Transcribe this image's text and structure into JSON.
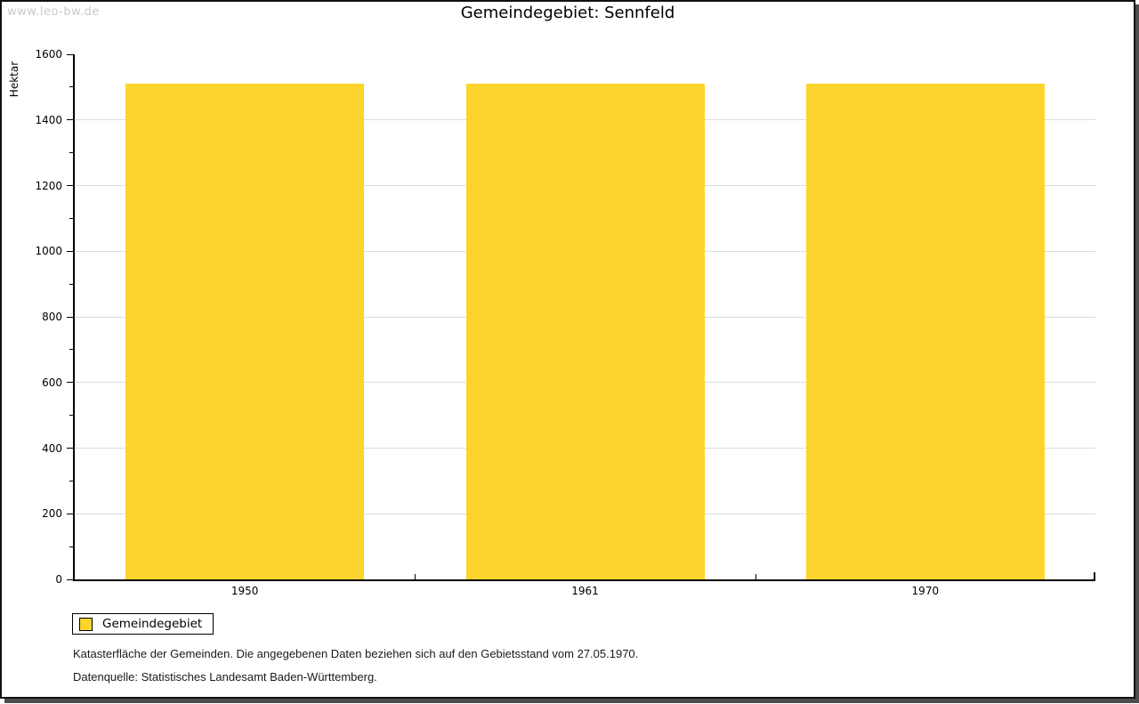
{
  "watermark": {
    "text": "www.leo-bw.de"
  },
  "title": "Gemeindegebiet: Sennfeld",
  "legend": {
    "label": "Gemeindegebiet",
    "swatch_color": "#fcd42d"
  },
  "captions": {
    "line1": "Katasterfläche der Gemeinden. Die angegebenen Daten beziehen sich auf den Gebietsstand vom 27.05.1970.",
    "line2": "Datenquelle: Statistisches Landesamt Baden-Württemberg."
  },
  "chart_data": {
    "type": "bar",
    "title": "Gemeindegebiet: Sennfeld",
    "categories": [
      "1950",
      "1961",
      "1970"
    ],
    "series": [
      {
        "name": "Gemeindegebiet",
        "values": [
          1511,
          1511,
          1511
        ]
      }
    ],
    "xlabel": "",
    "ylabel": "Hektar",
    "ylim": [
      0,
      1600
    ],
    "ytick_step": 200,
    "yminor_step": 100,
    "grid": true,
    "legend_position": "bottom-left",
    "bar_color": "#fcd42d"
  },
  "colors": {
    "bar": "#fcd42d",
    "gridline": "#dcdcdc",
    "axis": "#000000",
    "watermark": "#c9c9c9",
    "frame_shadow": "#4e4e4e",
    "background": "#ffffff"
  }
}
